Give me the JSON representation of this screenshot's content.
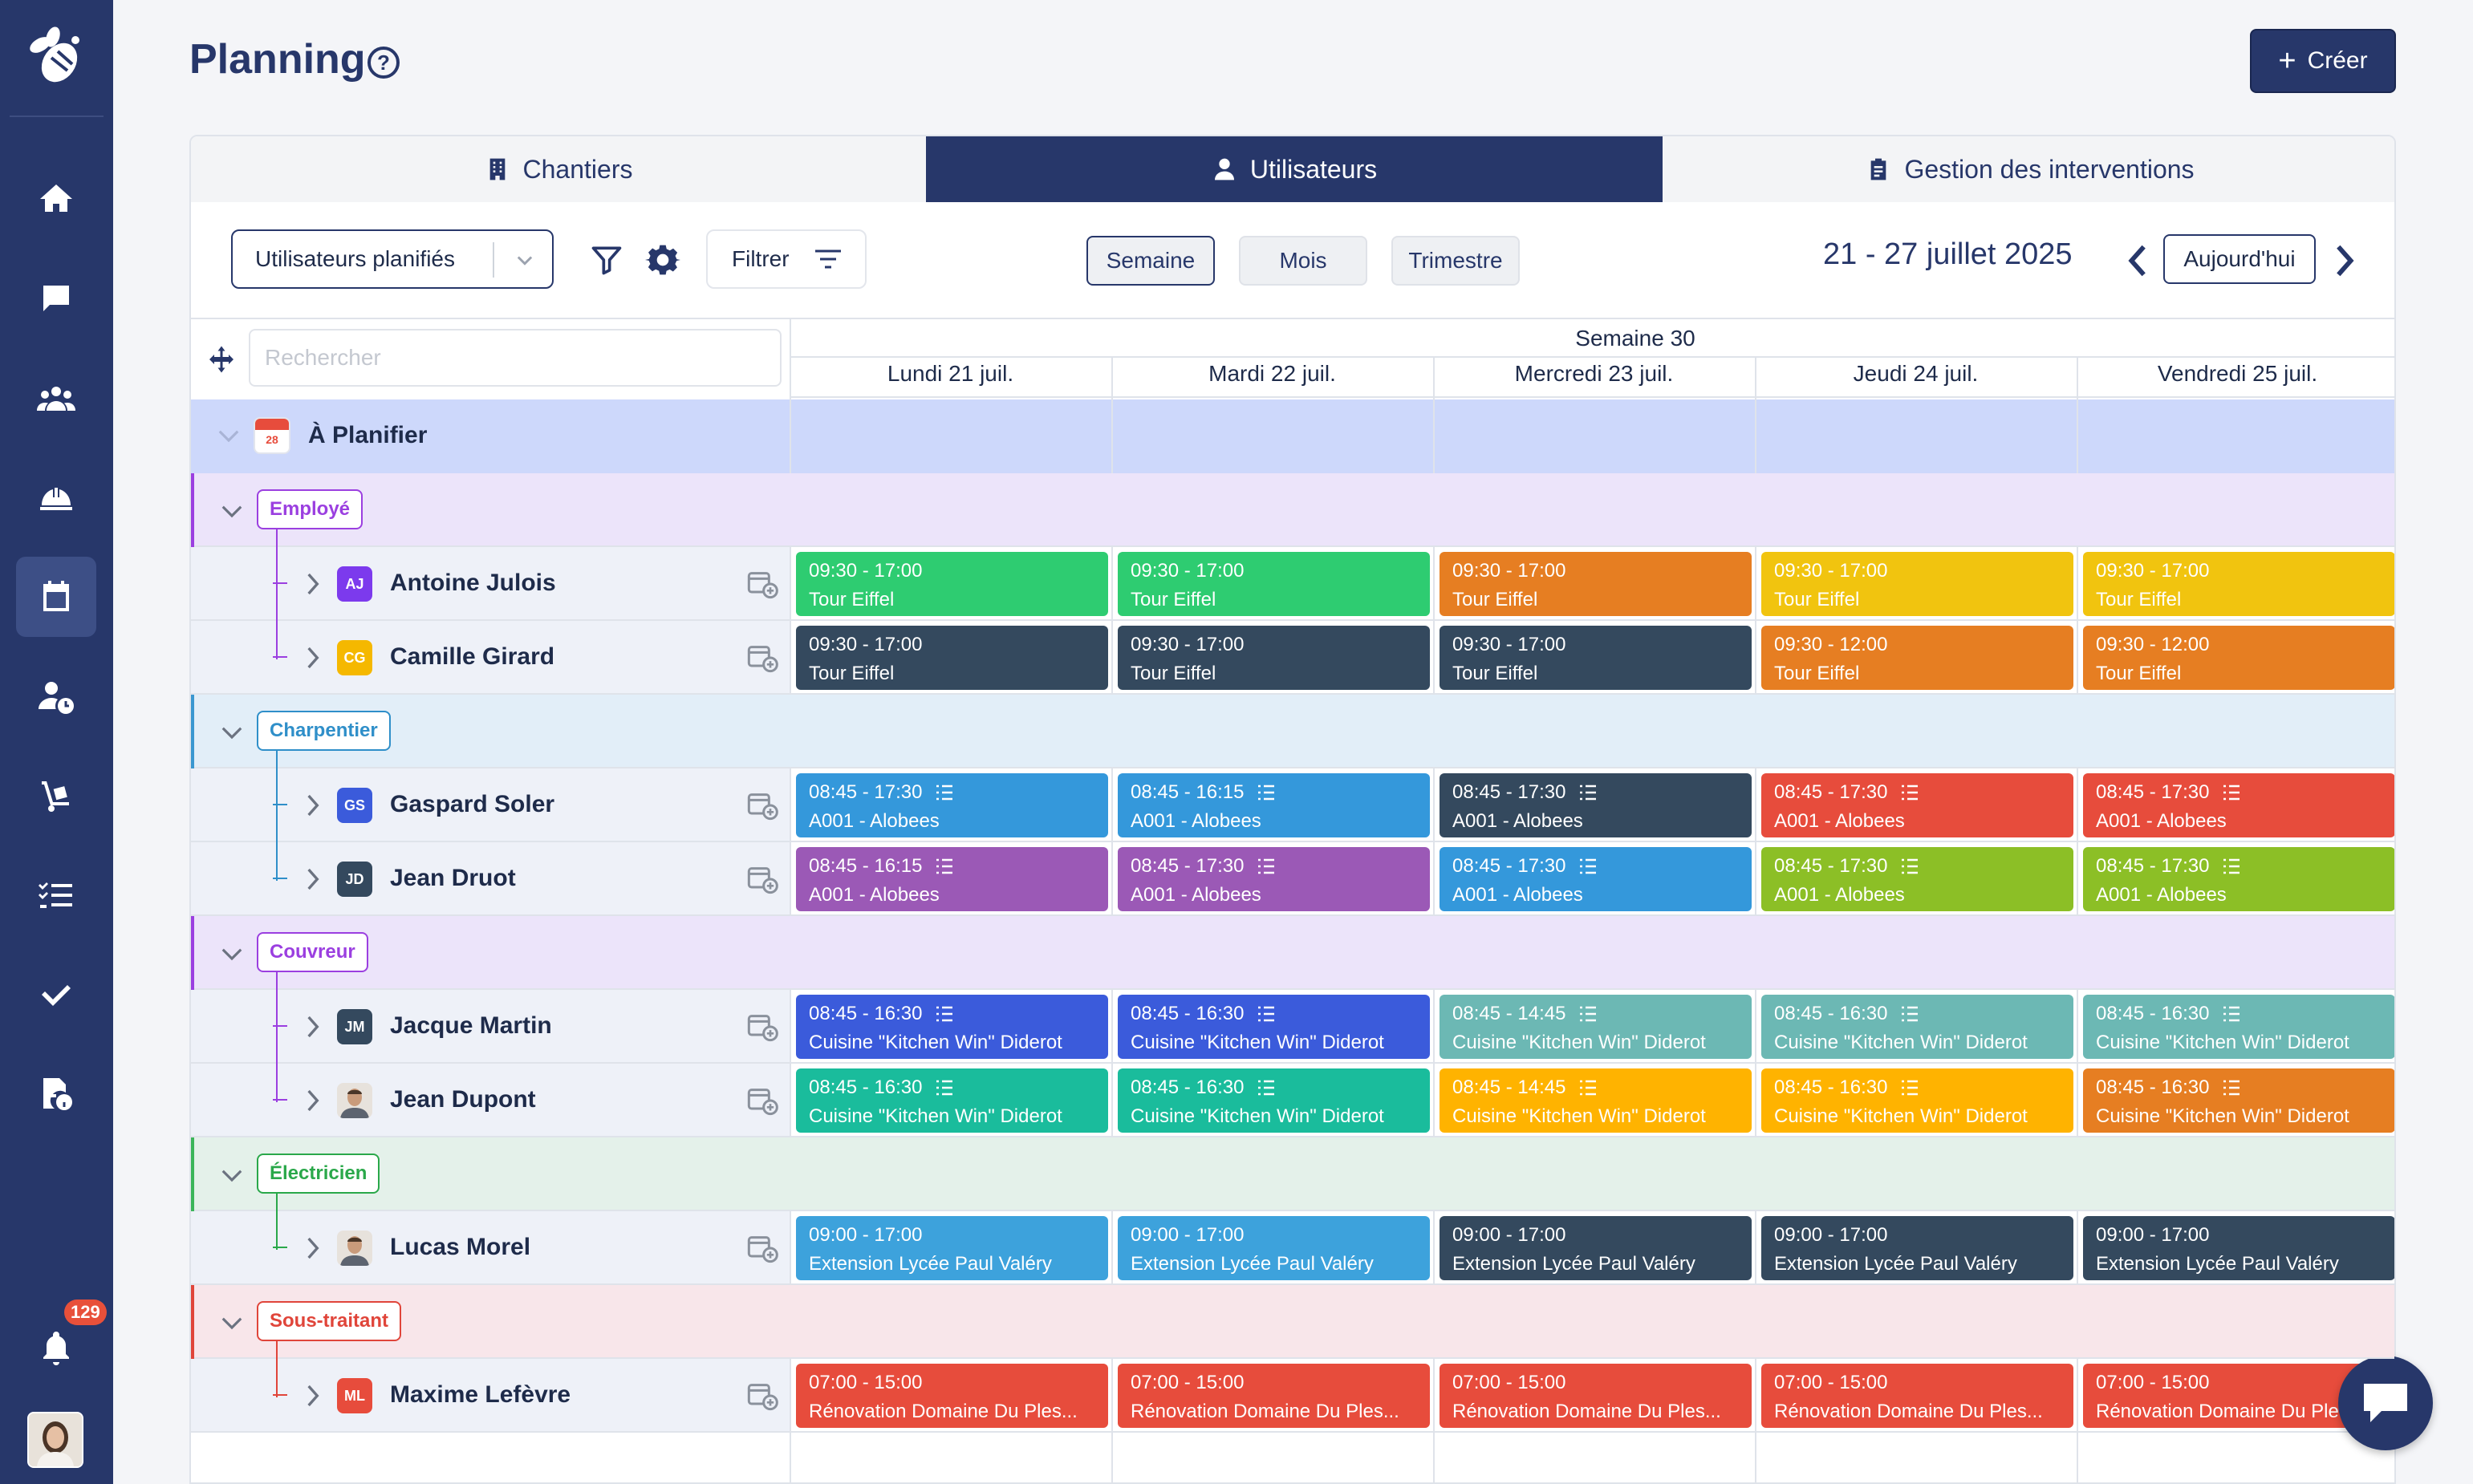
{
  "header": {
    "title": "Planning",
    "help": "?",
    "create_label": "Créer"
  },
  "sidebar": {
    "notification_count": "129"
  },
  "tabs": [
    {
      "label": "Chantiers",
      "icon": "building-icon"
    },
    {
      "label": "Utilisateurs",
      "icon": "user-icon",
      "active": true
    },
    {
      "label": "Gestion des interventions",
      "icon": "clipboard-icon"
    }
  ],
  "toolbar": {
    "users_select": "Utilisateurs planifiés",
    "filter_label": "Filtrer",
    "views": [
      "Semaine",
      "Mois",
      "Trimestre"
    ],
    "selected_view": "Semaine",
    "date_range": "21 - 27 juillet 2025",
    "today_label": "Aujourd'hui"
  },
  "search": {
    "placeholder": "Rechercher"
  },
  "calendar": {
    "week_label": "Semaine 30",
    "days": [
      "Lundi 21 juil.",
      "Mardi 22 juil.",
      "Mercredi 23 juil.",
      "Jeudi 24 juil.",
      "Vendredi 25 juil."
    ]
  },
  "colors": {
    "navy": "#27376a",
    "green": "#2ecc71",
    "orange": "#e67e22",
    "yellow": "#f1c40f",
    "dark": "#34495e",
    "blue": "#3498db",
    "red": "#e74c3c",
    "purple": "#9b59b6",
    "lime": "#8cbf26",
    "royal": "#3b5bdb",
    "teal": "#6cb8b4",
    "emerald": "#1abc9c",
    "amber": "#ffb300",
    "ltblue": "#3da2dc"
  },
  "to_plan": {
    "label": "À Planifier",
    "calendar_day": "28"
  },
  "groups": [
    {
      "label": "Employé",
      "color": "#9b3fe0",
      "bg": "#ece4fa",
      "border": "#9b3fe0",
      "people": [
        {
          "initials": "AJ",
          "badge_color": "#7c3aed",
          "name": "Antoine Julois",
          "events": [
            {
              "time": "09:30 - 17:00",
              "title": "Tour Eiffel",
              "color": "#2ecc71",
              "task": false
            },
            {
              "time": "09:30 - 17:00",
              "title": "Tour Eiffel",
              "color": "#2ecc71",
              "task": false
            },
            {
              "time": "09:30 - 17:00",
              "title": "Tour Eiffel",
              "color": "#e67e22",
              "task": false
            },
            {
              "time": "09:30 - 17:00",
              "title": "Tour Eiffel",
              "color": "#f1c40f",
              "task": false
            },
            {
              "time": "09:30 - 17:00",
              "title": "Tour Eiffel",
              "color": "#f1c40f",
              "task": false
            }
          ]
        },
        {
          "initials": "CG",
          "badge_color": "#f5b800",
          "name": "Camille Girard",
          "events": [
            {
              "time": "09:30 - 17:00",
              "title": "Tour Eiffel",
              "color": "#34495e",
              "task": false
            },
            {
              "time": "09:30 - 17:00",
              "title": "Tour Eiffel",
              "color": "#34495e",
              "task": false
            },
            {
              "time": "09:30 - 17:00",
              "title": "Tour Eiffel",
              "color": "#34495e",
              "task": false
            },
            {
              "time": "09:30 - 12:00",
              "title": "Tour Eiffel",
              "color": "#e67e22",
              "task": false
            },
            {
              "time": "09:30 - 12:00",
              "title": "Tour Eiffel",
              "color": "#e67e22",
              "task": false
            }
          ]
        }
      ]
    },
    {
      "label": "Charpentier",
      "color": "#2f8fc9",
      "bg": "#e2eef8",
      "border": "#3a97d0",
      "people": [
        {
          "initials": "GS",
          "badge_color": "#3b5bdb",
          "name": "Gaspard Soler",
          "events": [
            {
              "time": "08:45 - 17:30",
              "title": "A001 - Alobees",
              "color": "#3498db",
              "task": true
            },
            {
              "time": "08:45 - 16:15",
              "title": "A001 - Alobees",
              "color": "#3498db",
              "task": true
            },
            {
              "time": "08:45 - 17:30",
              "title": "A001 - Alobees",
              "color": "#34495e",
              "task": true
            },
            {
              "time": "08:45 - 17:30",
              "title": "A001 - Alobees",
              "color": "#e74c3c",
              "task": true
            },
            {
              "time": "08:45 - 17:30",
              "title": "A001 - Alobees",
              "color": "#e74c3c",
              "task": true
            }
          ]
        },
        {
          "initials": "JD",
          "badge_color": "#34495e",
          "name": "Jean Druot",
          "events": [
            {
              "time": "08:45 - 16:15",
              "title": "A001 - Alobees",
              "color": "#9b59b6",
              "task": true
            },
            {
              "time": "08:45 - 17:30",
              "title": "A001 - Alobees",
              "color": "#9b59b6",
              "task": true
            },
            {
              "time": "08:45 - 17:30",
              "title": "A001 - Alobees",
              "color": "#3498db",
              "task": true
            },
            {
              "time": "08:45 - 17:30",
              "title": "A001 - Alobees",
              "color": "#8cbf26",
              "task": true
            },
            {
              "time": "08:45 - 17:30",
              "title": "A001 - Alobees",
              "color": "#8cbf26",
              "task": true
            }
          ]
        }
      ]
    },
    {
      "label": "Couvreur",
      "color": "#9b3fe0",
      "bg": "#ece4fa",
      "border": "#9b3fe0",
      "people": [
        {
          "initials": "JM",
          "badge_color": "#34495e",
          "name": "Jacque Martin",
          "events": [
            {
              "time": "08:45 - 16:30",
              "title": "Cuisine \"Kitchen Win\" Diderot",
              "color": "#3b5bdb",
              "task": true
            },
            {
              "time": "08:45 - 16:30",
              "title": "Cuisine \"Kitchen Win\" Diderot",
              "color": "#3b5bdb",
              "task": true
            },
            {
              "time": "08:45 - 14:45",
              "title": "Cuisine \"Kitchen Win\" Diderot",
              "color": "#6cb8b4",
              "task": true
            },
            {
              "time": "08:45 - 16:30",
              "title": "Cuisine \"Kitchen Win\" Diderot",
              "color": "#6cb8b4",
              "task": true
            },
            {
              "time": "08:45 - 16:30",
              "title": "Cuisine \"Kitchen Win\" Diderot",
              "color": "#6cb8b4",
              "task": true
            }
          ]
        },
        {
          "initials": "",
          "badge_color": "photo",
          "name": "Jean Dupont",
          "events": [
            {
              "time": "08:45 - 16:30",
              "title": "Cuisine \"Kitchen Win\" Diderot",
              "color": "#1abc9c",
              "task": true
            },
            {
              "time": "08:45 - 16:30",
              "title": "Cuisine \"Kitchen Win\" Diderot",
              "color": "#1abc9c",
              "task": true
            },
            {
              "time": "08:45 - 14:45",
              "title": "Cuisine \"Kitchen Win\" Diderot",
              "color": "#ffb300",
              "task": true
            },
            {
              "time": "08:45 - 16:30",
              "title": "Cuisine \"Kitchen Win\" Diderot",
              "color": "#ffb300",
              "task": true
            },
            {
              "time": "08:45 - 16:30",
              "title": "Cuisine \"Kitchen Win\" Diderot",
              "color": "#e67e22",
              "task": true
            }
          ]
        }
      ]
    },
    {
      "label": "Électricien",
      "color": "#2aa84a",
      "bg": "#e4f1ea",
      "border": "#3bb55a",
      "people": [
        {
          "initials": "",
          "badge_color": "photo",
          "name": "Lucas Morel",
          "events": [
            {
              "time": "09:00 - 17:00",
              "title": "Extension Lycée Paul Valéry",
              "color": "#3da2dc",
              "task": false
            },
            {
              "time": "09:00 - 17:00",
              "title": "Extension Lycée Paul Valéry",
              "color": "#3da2dc",
              "task": false
            },
            {
              "time": "09:00 - 17:00",
              "title": "Extension Lycée Paul Valéry",
              "color": "#34495e",
              "task": false
            },
            {
              "time": "09:00 - 17:00",
              "title": "Extension Lycée Paul Valéry",
              "color": "#34495e",
              "task": false
            },
            {
              "time": "09:00 - 17:00",
              "title": "Extension Lycée Paul Valéry",
              "color": "#34495e",
              "task": false
            }
          ]
        }
      ]
    },
    {
      "label": "Sous-traitant",
      "color": "#e0453a",
      "bg": "#f8e6ea",
      "border": "#e0453a",
      "people": [
        {
          "initials": "ML",
          "badge_color": "#e74c3c",
          "name": "Maxime Lefèvre",
          "events": [
            {
              "time": "07:00 - 15:00",
              "title": "Rénovation Domaine Du Ples...",
              "color": "#e74c3c",
              "task": false
            },
            {
              "time": "07:00 - 15:00",
              "title": "Rénovation Domaine Du Ples...",
              "color": "#e74c3c",
              "task": false
            },
            {
              "time": "07:00 - 15:00",
              "title": "Rénovation Domaine Du Ples...",
              "color": "#e74c3c",
              "task": false
            },
            {
              "time": "07:00 - 15:00",
              "title": "Rénovation Domaine Du Ples...",
              "color": "#e74c3c",
              "task": false
            },
            {
              "time": "07:00 - 15:00",
              "title": "Rénovation Domaine Du Ple",
              "color": "#e74c3c",
              "task": false
            }
          ]
        }
      ]
    }
  ]
}
